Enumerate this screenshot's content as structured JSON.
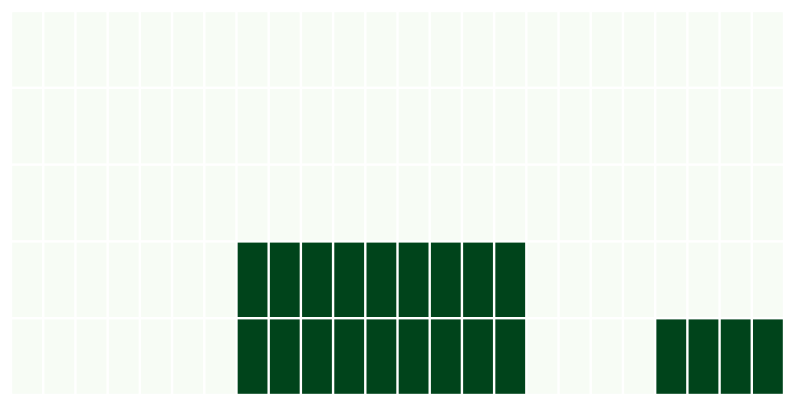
{
  "chart_data": {
    "type": "heatmap",
    "title": "",
    "xlabel": "",
    "ylabel": "",
    "n_rows": 5,
    "n_cols": 24,
    "values": [
      [
        0,
        0,
        0,
        0,
        0,
        0,
        0,
        0,
        0,
        0,
        0,
        0,
        0,
        0,
        0,
        0,
        0,
        0,
        0,
        0,
        0,
        0,
        0,
        0
      ],
      [
        0,
        0,
        0,
        0,
        0,
        0,
        0,
        0,
        0,
        0,
        0,
        0,
        0,
        0,
        0,
        0,
        0,
        0,
        0,
        0,
        0,
        0,
        0,
        0
      ],
      [
        0,
        0,
        0,
        0,
        0,
        0,
        0,
        0,
        0,
        0,
        0,
        0,
        0,
        0,
        0,
        0,
        0,
        0,
        0,
        0,
        0,
        0,
        0,
        0
      ],
      [
        0,
        0,
        0,
        0,
        0,
        0,
        0,
        1,
        1,
        1,
        1,
        1,
        1,
        1,
        1,
        1,
        0,
        0,
        0,
        0,
        0,
        0,
        0,
        0
      ],
      [
        0,
        0,
        0,
        0,
        0,
        0,
        0,
        1,
        1,
        1,
        1,
        1,
        1,
        1,
        1,
        1,
        0,
        0,
        0,
        0,
        1,
        1,
        1,
        1
      ]
    ],
    "colors": {
      "low": "#f7fcf5",
      "high": "#00441b",
      "separator": "#ffffff"
    },
    "grid": false,
    "legend": "none"
  }
}
